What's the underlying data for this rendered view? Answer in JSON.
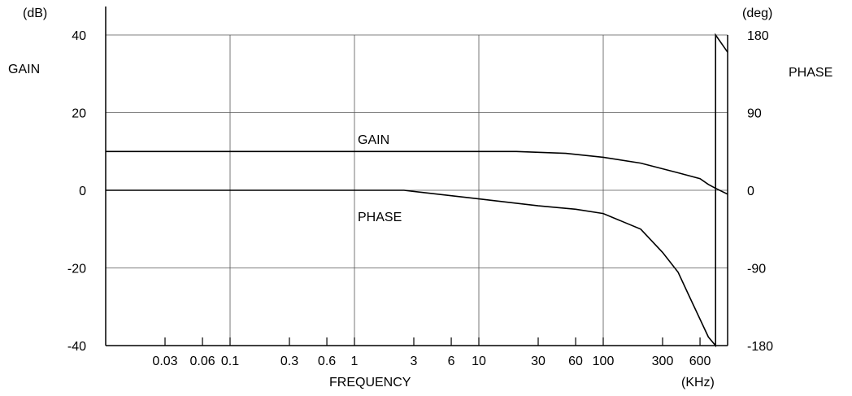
{
  "chart_data": {
    "type": "line",
    "xlabel": "FREQUENCY",
    "x_unit": "(KHz)",
    "x_scale": "log",
    "x_tick_labels": [
      "0.03",
      "0.06",
      "0.1",
      "0.3",
      "0.6",
      "1",
      "3",
      "6",
      "10",
      "30",
      "60",
      "100",
      "300",
      "600"
    ],
    "x_ticks": [
      0.03,
      0.06,
      0.1,
      0.3,
      0.6,
      1,
      3,
      6,
      10,
      30,
      60,
      100,
      300,
      600
    ],
    "xlim": [
      0.01,
      1000
    ],
    "y_left": {
      "label": "GAIN",
      "unit": "(dB)",
      "ticks": [
        40,
        20,
        0,
        -20,
        -40
      ],
      "tick_labels": [
        "40",
        "20",
        "0",
        "-20",
        "-40"
      ],
      "ylim": [
        -40,
        40
      ]
    },
    "y_right": {
      "label": "PHASE",
      "unit": "(deg)",
      "ticks": [
        180,
        90,
        0,
        -90,
        -180
      ],
      "tick_labels": [
        "180",
        "90",
        "0",
        "-90",
        "-180"
      ],
      "ylim": [
        -180,
        180
      ]
    },
    "grid": true,
    "series": [
      {
        "name": "GAIN",
        "axis": "left",
        "x": [
          0.01,
          10,
          20,
          50,
          100,
          200,
          400,
          600,
          700,
          800,
          1000
        ],
        "y": [
          10,
          10,
          10,
          9.5,
          8.5,
          7,
          4.5,
          3,
          1.5,
          0.5,
          -1
        ]
      },
      {
        "name": "PHASE",
        "axis": "right",
        "x": [
          0.01,
          1,
          2.5,
          10,
          30,
          60,
          100,
          200,
          300,
          400,
          500,
          700,
          800,
          800,
          1000
        ],
        "y": [
          0,
          0,
          0,
          -10,
          -18,
          -22,
          -27,
          -45,
          -72,
          -95,
          -125,
          -170,
          -180,
          180,
          160
        ]
      }
    ]
  }
}
